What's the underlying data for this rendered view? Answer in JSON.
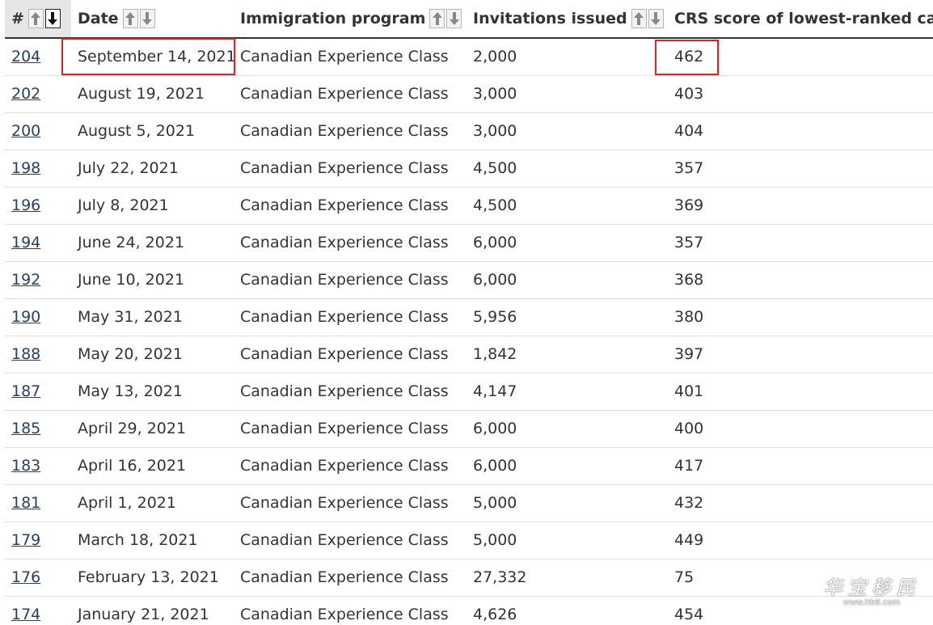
{
  "columns": {
    "num": "#",
    "date": "Date",
    "program": "Immigration program",
    "invitations": "Invitations issued",
    "crs": "CRS score of lowest-ranked candidates invited"
  },
  "sort": {
    "up_icon": "arrow-up-icon",
    "down_icon": "arrow-down-icon",
    "active_column": "num",
    "active_direction": "descending"
  },
  "rows": [
    {
      "num": "204",
      "date": "September 14, 2021",
      "program": "Canadian Experience Class",
      "invitations": "2,000",
      "crs": "462"
    },
    {
      "num": "202",
      "date": "August 19, 2021",
      "program": "Canadian Experience Class",
      "invitations": "3,000",
      "crs": "403"
    },
    {
      "num": "200",
      "date": "August 5, 2021",
      "program": "Canadian Experience Class",
      "invitations": "3,000",
      "crs": "404"
    },
    {
      "num": "198",
      "date": "July 22, 2021",
      "program": "Canadian Experience Class",
      "invitations": "4,500",
      "crs": "357"
    },
    {
      "num": "196",
      "date": "July 8, 2021",
      "program": "Canadian Experience Class",
      "invitations": "4,500",
      "crs": "369"
    },
    {
      "num": "194",
      "date": "June 24, 2021",
      "program": "Canadian Experience Class",
      "invitations": "6,000",
      "crs": "357"
    },
    {
      "num": "192",
      "date": "June 10, 2021",
      "program": "Canadian Experience Class",
      "invitations": "6,000",
      "crs": "368"
    },
    {
      "num": "190",
      "date": "May 31, 2021",
      "program": "Canadian Experience Class",
      "invitations": "5,956",
      "crs": "380"
    },
    {
      "num": "188",
      "date": "May 20, 2021",
      "program": "Canadian Experience Class",
      "invitations": "1,842",
      "crs": "397"
    },
    {
      "num": "187",
      "date": "May 13, 2021",
      "program": "Canadian Experience Class",
      "invitations": "4,147",
      "crs": "401"
    },
    {
      "num": "185",
      "date": "April 29, 2021",
      "program": "Canadian Experience Class",
      "invitations": "6,000",
      "crs": "400"
    },
    {
      "num": "183",
      "date": "April 16, 2021",
      "program": "Canadian Experience Class",
      "invitations": "6,000",
      "crs": "417"
    },
    {
      "num": "181",
      "date": "April 1, 2021",
      "program": "Canadian Experience Class",
      "invitations": "5,000",
      "crs": "432"
    },
    {
      "num": "179",
      "date": "March 18, 2021",
      "program": "Canadian Experience Class",
      "invitations": "5,000",
      "crs": "449"
    },
    {
      "num": "176",
      "date": "February 13, 2021",
      "program": "Canadian Experience Class",
      "invitations": "27,332",
      "crs": "75"
    },
    {
      "num": "174",
      "date": "January 21, 2021",
      "program": "Canadian Experience Class",
      "invitations": "4,626",
      "crs": "454"
    }
  ],
  "highlight_color": "#e02222",
  "link_color": "#284162",
  "watermark": {
    "logo": "华宝移民",
    "url": "www.hb8.com"
  }
}
